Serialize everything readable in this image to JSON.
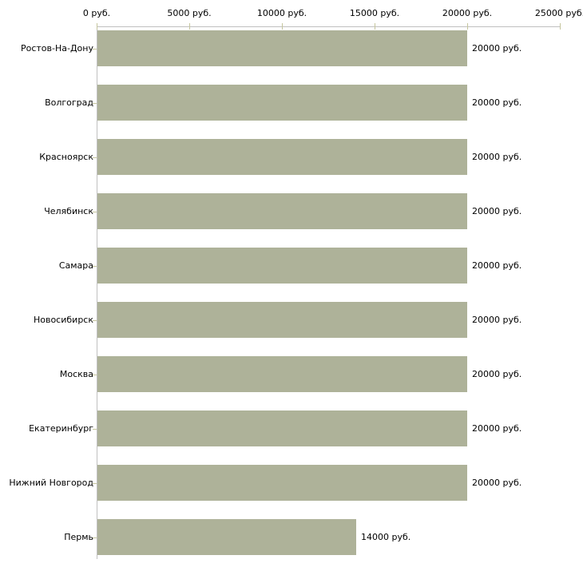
{
  "chart_data": {
    "type": "bar",
    "orientation": "horizontal",
    "title": "",
    "xlabel": "",
    "ylabel": "",
    "unit": "руб.",
    "categories": [
      "Ростов-На-Дону",
      "Волгоград",
      "Красноярск",
      "Челябинск",
      "Самара",
      "Новосибирск",
      "Москва",
      "Екатеринбург",
      "Нижний Новгород",
      "Пермь"
    ],
    "values": [
      20000,
      20000,
      20000,
      20000,
      20000,
      20000,
      20000,
      20000,
      20000,
      14000
    ],
    "value_labels": [
      "20000 руб.",
      "20000 руб.",
      "20000 руб.",
      "20000 руб.",
      "20000 руб.",
      "20000 руб.",
      "20000 руб.",
      "20000 руб.",
      "20000 руб.",
      "14000 руб."
    ],
    "x_ticks": [
      0,
      5000,
      10000,
      15000,
      20000,
      25000
    ],
    "x_tick_labels": [
      "0 руб.",
      "5000 руб.",
      "10000 руб.",
      "15000 руб.",
      "20000 руб.",
      "25000 руб."
    ],
    "xlim": [
      0,
      25000
    ],
    "x_axis_position": "top",
    "grid": "off",
    "legend": "none",
    "colors": {
      "bar_fill": "#aeb299",
      "axis_line": "#c0c0c0",
      "tick_mark": "#c6c69e",
      "text": "#000000",
      "background": "#ffffff"
    }
  }
}
